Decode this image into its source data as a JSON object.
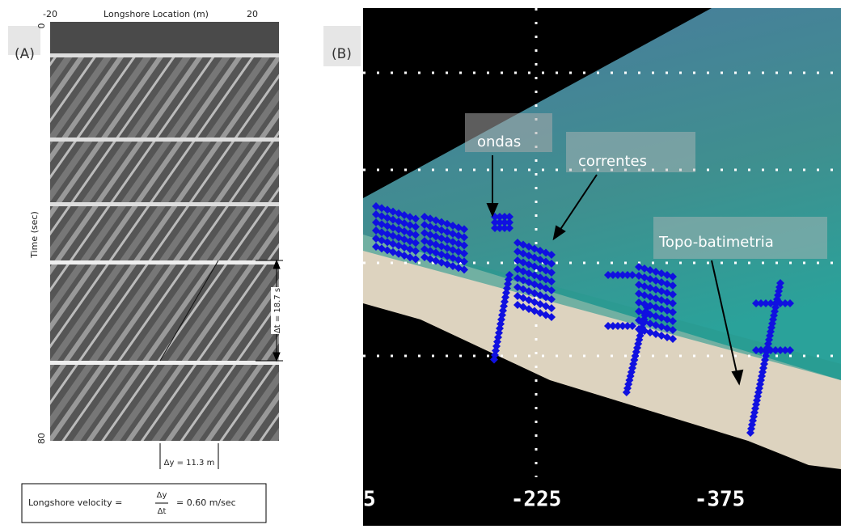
{
  "panel_a": {
    "label": "(A)",
    "x_axis_title": "Longshore Location (m)",
    "x_ticks": [
      "-20",
      "20"
    ],
    "y_axis_title": "Time (sec)",
    "y_ticks": [
      "0",
      "80"
    ],
    "dt_label": "Δt = 18.7 s",
    "dy_label": "Δy = 11.3 m",
    "formula": {
      "prefix": "Longshore velocity =",
      "numerator": "Δy",
      "denominator": "Δt",
      "result": "= 0.60 m/sec"
    }
  },
  "panel_b": {
    "label": "(B)",
    "annotations": [
      "ondas",
      "correntes",
      "Topo-batimetria"
    ],
    "x_ticks": [
      "5",
      "-225",
      "-375"
    ]
  }
}
